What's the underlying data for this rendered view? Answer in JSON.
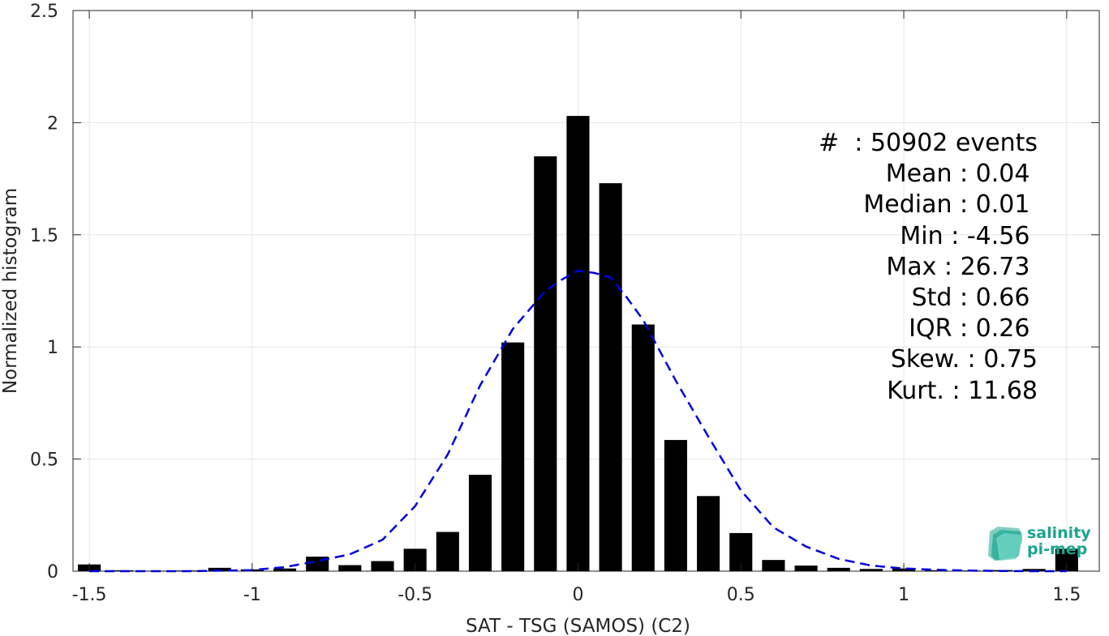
{
  "chart_data": {
    "type": "bar",
    "xlabel": "SAT - TSG (SAMOS) (C2)",
    "ylabel": "Normalized histogram",
    "xlim": [
      -1.55,
      1.6
    ],
    "ylim": [
      0,
      2.5
    ],
    "xticks": [
      -1.5,
      -1,
      -0.5,
      0,
      0.5,
      1,
      1.5
    ],
    "xtick_labels": [
      "-1.5",
      "-1",
      "-0.5",
      "0",
      "0.5",
      "1",
      "1.5"
    ],
    "yticks": [
      0,
      0.5,
      1,
      1.5,
      2,
      2.5
    ],
    "ytick_labels": [
      "0",
      "0.5",
      "1",
      "1.5",
      "2",
      "2.5"
    ],
    "grid": true,
    "bar_width": 0.07,
    "bar_color": "#000000",
    "bars": {
      "x": [
        -1.5,
        -1.4,
        -1.3,
        -1.2,
        -1.1,
        -1.0,
        -0.9,
        -0.8,
        -0.7,
        -0.6,
        -0.5,
        -0.4,
        -0.3,
        -0.2,
        -0.1,
        0.0,
        0.1,
        0.2,
        0.3,
        0.4,
        0.5,
        0.6,
        0.7,
        0.8,
        0.9,
        1.0,
        1.1,
        1.2,
        1.3,
        1.4,
        1.5
      ],
      "values": [
        0.03,
        0.004,
        0.002,
        0.003,
        0.015,
        0.008,
        0.012,
        0.065,
        0.027,
        0.045,
        0.1,
        0.175,
        0.43,
        1.02,
        1.85,
        2.03,
        1.73,
        1.1,
        0.585,
        0.335,
        0.17,
        0.05,
        0.025,
        0.015,
        0.01,
        0.012,
        0.004,
        0.003,
        0.005,
        0.01,
        0.1
      ]
    },
    "fit_curve": {
      "style": "dashed",
      "color": "#0000dd",
      "x": [
        -1.5,
        -1.4,
        -1.3,
        -1.2,
        -1.1,
        -1.0,
        -0.9,
        -0.8,
        -0.7,
        -0.6,
        -0.5,
        -0.4,
        -0.3,
        -0.2,
        -0.1,
        -0.05,
        0.0,
        0.05,
        0.1,
        0.15,
        0.2,
        0.3,
        0.4,
        0.5,
        0.6,
        0.7,
        0.8,
        0.9,
        1.0,
        1.1,
        1.2,
        1.3,
        1.4,
        1.5
      ],
      "values": [
        0.0,
        0.0,
        0.0,
        0.0,
        0.002,
        0.005,
        0.018,
        0.045,
        0.075,
        0.14,
        0.29,
        0.52,
        0.83,
        1.08,
        1.25,
        1.3,
        1.34,
        1.33,
        1.31,
        1.22,
        1.12,
        0.85,
        0.6,
        0.36,
        0.195,
        0.11,
        0.055,
        0.025,
        0.012,
        0.006,
        0.003,
        0.001,
        0.0,
        0.0
      ]
    },
    "stats": [
      "#  : 50902 events",
      "Mean : 0.04 ",
      "Median : 0.01 ",
      "Min : -4.56 ",
      "Max : 26.73 ",
      "Std : 0.66 ",
      "IQR : 0.26 ",
      "Skew. : 0.75",
      "Kurt. : 11.68"
    ]
  },
  "logo": {
    "line1": "salinity",
    "line2": "pi-mep"
  }
}
